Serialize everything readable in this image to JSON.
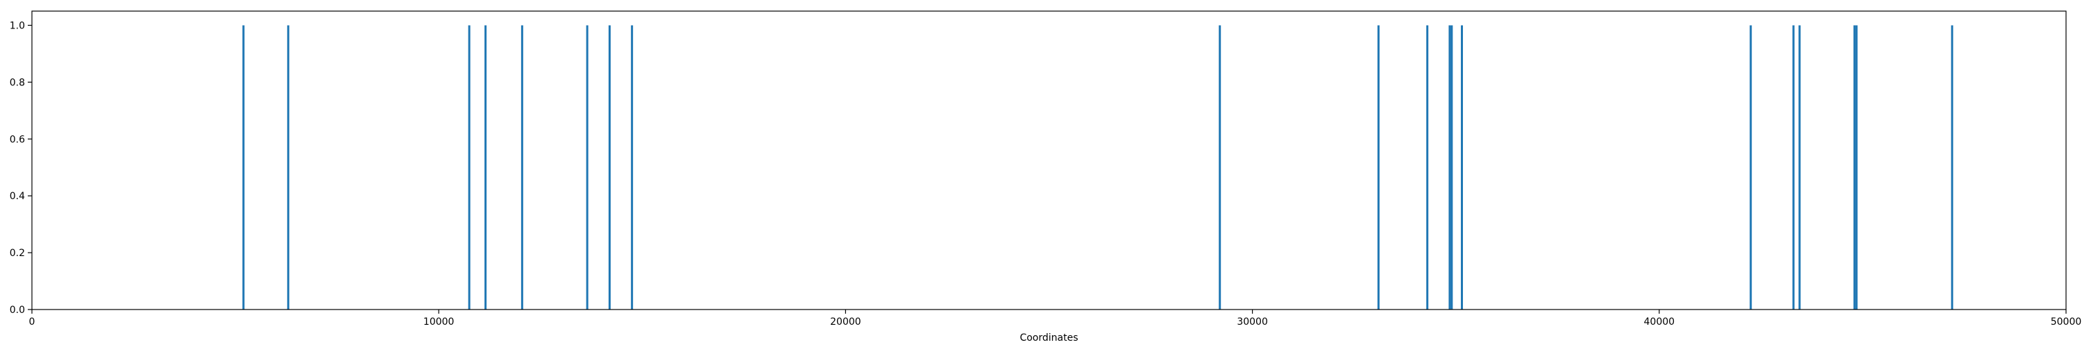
{
  "chart_data": {
    "type": "bar",
    "title": "",
    "xlabel": "Coordinates",
    "ylabel": "",
    "xlim": [
      0,
      50000
    ],
    "ylim": [
      0,
      1.05
    ],
    "xticks": [
      0,
      10000,
      20000,
      30000,
      40000,
      50000
    ],
    "yticks": [
      0.0,
      0.2,
      0.4,
      0.6,
      0.8,
      1.0
    ],
    "xtick_labels": [
      "0",
      "10000",
      "20000",
      "30000",
      "40000",
      "50000"
    ],
    "ytick_labels": [
      "0.0",
      "0.2",
      "0.4",
      "0.6",
      "0.8",
      "1.0"
    ],
    "grid": false,
    "bar_color": "#1f77b4",
    "x": [
      5200,
      6300,
      10750,
      11150,
      12050,
      13650,
      14200,
      14750,
      29200,
      33100,
      34300,
      34850,
      34900,
      35150,
      42250,
      43300,
      43450,
      44800,
      44850,
      47200
    ],
    "values": [
      1,
      1,
      1,
      1,
      1,
      1,
      1,
      1,
      1,
      1,
      1,
      1,
      1,
      1,
      1,
      1,
      1,
      1,
      1,
      1
    ]
  }
}
